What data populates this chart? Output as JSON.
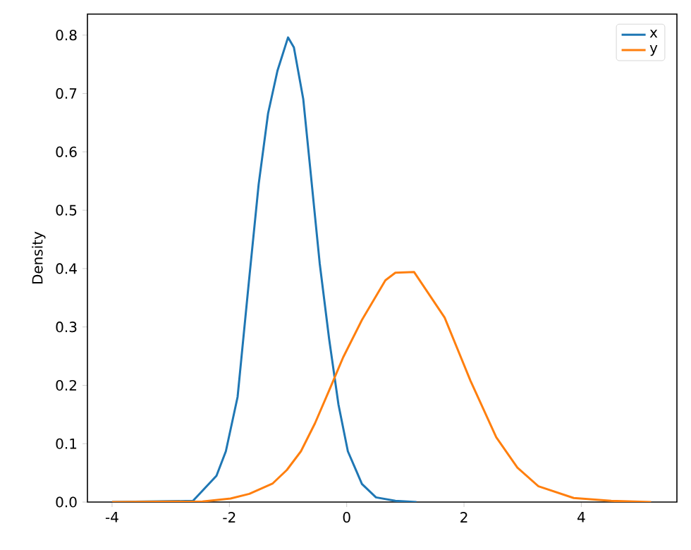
{
  "chart_data": {
    "type": "line",
    "ylabel": "Density",
    "xlim": [
      -4.42,
      5.63
    ],
    "ylim": [
      0,
      0.836
    ],
    "xticks": [
      -4,
      -2,
      0,
      2,
      4
    ],
    "yticks": [
      {
        "value": 0,
        "label": "0.0"
      },
      0.1,
      0.2,
      0.3,
      0.4,
      0.5,
      0.6,
      0.7,
      0.8
    ],
    "legend": "top right",
    "grid": false,
    "series": [
      {
        "name": "x",
        "color": "#1f77b4",
        "x": [
          -4,
          -2.62,
          -2.22,
          -2.06,
          -1.86,
          -1.66,
          -1.5,
          -1.34,
          -1.18,
          -1.0,
          -0.9,
          -0.74,
          -0.62,
          -0.46,
          -0.3,
          -0.14,
          0.02,
          0.26,
          0.5,
          0.83,
          1.19
        ],
        "values": [
          0,
          0.002,
          0.045,
          0.087,
          0.18,
          0.385,
          0.545,
          0.666,
          0.739,
          0.796,
          0.779,
          0.69,
          0.57,
          0.409,
          0.28,
          0.167,
          0.087,
          0.031,
          0.008,
          0.002,
          0
        ]
      },
      {
        "name": "y",
        "color": "#ff7f0e",
        "x": [
          -4,
          -2.46,
          -1.98,
          -1.66,
          -1.26,
          -1.02,
          -0.78,
          -0.54,
          -0.3,
          -0.06,
          0.26,
          0.66,
          0.83,
          1.15,
          1.67,
          2.11,
          2.55,
          2.91,
          3.27,
          3.87,
          4.51,
          5.19
        ],
        "values": [
          0,
          0.001,
          0.006,
          0.014,
          0.032,
          0.055,
          0.087,
          0.135,
          0.191,
          0.248,
          0.312,
          0.38,
          0.393,
          0.394,
          0.316,
          0.208,
          0.111,
          0.059,
          0.027,
          0.007,
          0.002,
          0
        ]
      }
    ]
  }
}
